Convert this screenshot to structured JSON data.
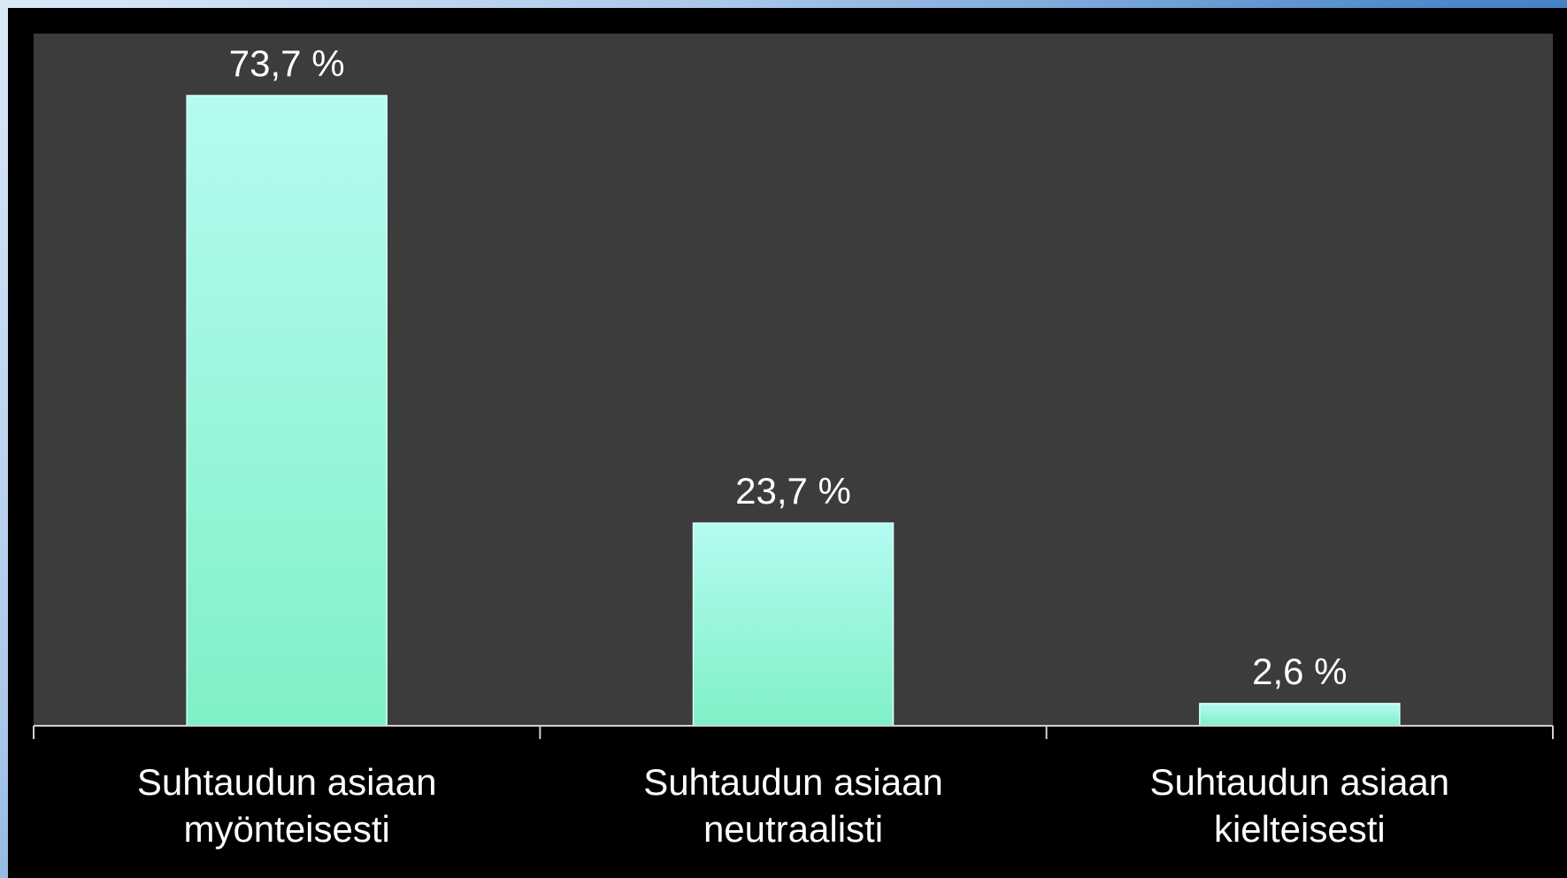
{
  "colors": {
    "slide_background": "#000000",
    "plot_background": "#3c3c3c",
    "bar_top": "#b4fbf2",
    "bar_bottom": "#80f0c6",
    "axis": "#d0d0d0",
    "text": "#ffffff"
  },
  "chart_data": {
    "type": "bar",
    "title": "",
    "xlabel": "",
    "ylabel": "",
    "ylim": [
      0,
      80
    ],
    "grid": false,
    "legend": "none",
    "categories": [
      [
        "Suhtaudun asiaan",
        "myönteisesti"
      ],
      [
        "Suhtaudun asiaan",
        "neutraalisti"
      ],
      [
        "Suhtaudun asiaan",
        "kielteisesti"
      ]
    ],
    "values": [
      73.7,
      23.7,
      2.6
    ],
    "data_labels": [
      "73,7 %",
      "23,7 %",
      "2,6 %"
    ]
  }
}
